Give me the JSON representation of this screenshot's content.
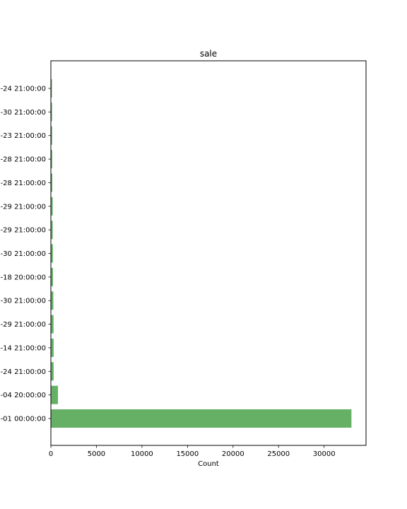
{
  "chart_data": {
    "type": "bar",
    "orientation": "horizontal",
    "title": "sale",
    "xlabel": "Count",
    "ylabel": "",
    "xlim": [
      0,
      34600
    ],
    "xticks": [
      0,
      5000,
      10000,
      15000,
      20000,
      25000,
      30000
    ],
    "categories": [
      "-24 21:00:00",
      "-30 21:00:00",
      "-23 21:00:00",
      "-28 21:00:00",
      "-28 21:00:00",
      "-29 21:00:00",
      "-29 21:00:00",
      "-30 21:00:00",
      "-18 20:00:00",
      "-30 21:00:00",
      "-29 21:00:00",
      "-14 21:00:00",
      "-24 21:00:00",
      "-04 20:00:00",
      "-01 00:00:00"
    ],
    "values": [
      110,
      130,
      140,
      150,
      160,
      200,
      200,
      220,
      230,
      270,
      290,
      300,
      300,
      780,
      33000
    ],
    "bar_color": "#66b066",
    "grid": false
  }
}
